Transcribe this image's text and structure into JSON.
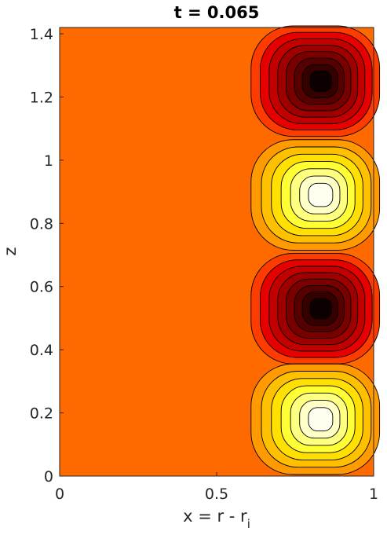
{
  "chart_data": {
    "type": "contour",
    "title": "t = 0.065",
    "xlabel_main": "x = r - r",
    "xlabel_sub": "i",
    "ylabel": "z",
    "xlim": [
      0,
      1
    ],
    "ylim": [
      0,
      1.42
    ],
    "x_ticks": [
      0,
      0.5,
      1
    ],
    "x_tick_labels": [
      "0",
      "0.5",
      "1"
    ],
    "y_ticks": [
      0,
      0.2,
      0.4,
      0.6,
      0.8,
      1,
      1.2,
      1.4
    ],
    "y_tick_labels": [
      "0",
      "0.2",
      "0.4",
      "0.6",
      "0.8",
      "1",
      "1.2",
      "1.4"
    ],
    "background_color": "#ff6a00",
    "cells": [
      {
        "name": "negative-cell",
        "cx": 0.83,
        "cz": 1.25,
        "sign": "negative"
      },
      {
        "name": "positive-cell",
        "cx": 0.83,
        "cz": 0.89,
        "sign": "positive"
      },
      {
        "name": "negative-cell",
        "cx": 0.83,
        "cz": 0.53,
        "sign": "negative"
      },
      {
        "name": "positive-cell",
        "cx": 0.83,
        "cz": 0.18,
        "sign": "positive"
      }
    ],
    "cell_half_width_x": 0.21,
    "cell_half_height_z": 0.175,
    "levels_negative": [
      "#ff3c00",
      "#e60000",
      "#c20000",
      "#9e0000",
      "#7a0000",
      "#570000",
      "#350000",
      "#0d0000"
    ],
    "levels_positive": [
      "#ff9a00",
      "#ffc000",
      "#ffe000",
      "#ffff33",
      "#ffff80",
      "#ffffc8",
      "#fffff0"
    ],
    "grid": false,
    "legend": "none"
  }
}
